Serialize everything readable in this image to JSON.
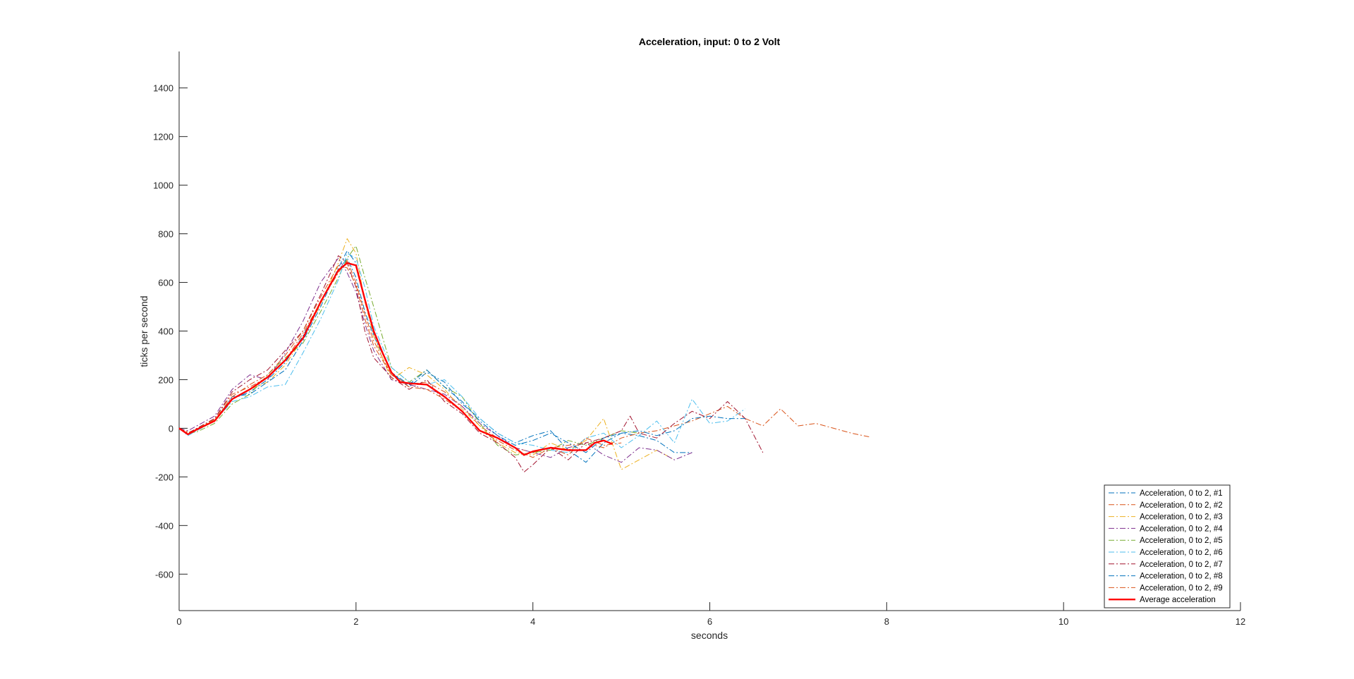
{
  "chart_data": {
    "type": "line",
    "title": "Acceleration, input: 0 to 2 Volt",
    "xlabel": "seconds",
    "ylabel": "ticks per second",
    "xlim": [
      0,
      12
    ],
    "ylim": [
      -750,
      1550
    ],
    "xticks": [
      0,
      2,
      4,
      6,
      8,
      10,
      12
    ],
    "yticks": [
      -600,
      -400,
      -200,
      0,
      200,
      400,
      600,
      800,
      1000,
      1200,
      1400
    ],
    "grid": false,
    "legend_position": "bottom-right",
    "series": [
      {
        "name": "Acceleration, 0 to 2, #1",
        "color": "#0072BD",
        "style": "dashdot",
        "x": [
          0,
          0.1,
          0.2,
          0.4,
          0.6,
          0.8,
          1.0,
          1.2,
          1.4,
          1.6,
          1.8,
          1.9,
          2.0,
          2.1,
          2.2,
          2.4,
          2.6,
          2.8,
          3.0,
          3.2,
          3.4,
          3.6,
          3.8,
          4.0,
          4.2,
          4.4,
          4.6,
          4.8,
          5.0,
          5.2,
          5.4,
          5.6,
          5.8
        ],
        "y": [
          0,
          -25,
          -5,
          30,
          120,
          150,
          200,
          270,
          380,
          520,
          650,
          700,
          620,
          480,
          380,
          230,
          170,
          230,
          190,
          100,
          40,
          -20,
          -60,
          -30,
          -10,
          -90,
          -140,
          -60,
          -20,
          -30,
          -50,
          -100,
          -100
        ]
      },
      {
        "name": "Acceleration, 0 to 2, #2",
        "color": "#D95319",
        "style": "dashdot",
        "x": [
          0,
          0.1,
          0.2,
          0.4,
          0.6,
          0.8,
          1.0,
          1.2,
          1.4,
          1.6,
          1.8,
          1.9,
          2.0,
          2.1,
          2.2,
          2.4,
          2.6,
          2.8,
          3.0,
          3.2,
          3.4,
          3.6,
          3.8,
          4.0,
          4.2,
          4.4,
          4.6,
          4.8,
          5.0,
          5.2,
          5.4,
          5.6,
          5.8,
          6.0,
          6.2,
          6.4,
          6.6,
          6.8,
          7.0,
          7.2,
          7.4,
          7.6,
          7.8
        ],
        "y": [
          0,
          -15,
          -10,
          40,
          140,
          170,
          210,
          280,
          390,
          520,
          640,
          690,
          600,
          470,
          360,
          220,
          180,
          190,
          150,
          90,
          10,
          -40,
          -80,
          -100,
          -80,
          -70,
          -60,
          -80,
          -40,
          -20,
          -10,
          10,
          30,
          60,
          90,
          40,
          10,
          80,
          10,
          20,
          0,
          -20,
          -35
        ]
      },
      {
        "name": "Acceleration, 0 to 2, #3",
        "color": "#EDB120",
        "style": "dashdot",
        "x": [
          0,
          0.1,
          0.2,
          0.4,
          0.6,
          0.8,
          1.0,
          1.2,
          1.4,
          1.6,
          1.8,
          1.9,
          2.0,
          2.1,
          2.2,
          2.4,
          2.6,
          2.8,
          3.0,
          3.2,
          3.4,
          3.6,
          3.8,
          4.0,
          4.2,
          4.4,
          4.6,
          4.8,
          5.0,
          5.2,
          5.4,
          5.6
        ],
        "y": [
          0,
          -20,
          0,
          35,
          120,
          160,
          190,
          260,
          370,
          510,
          680,
          780,
          720,
          520,
          380,
          200,
          250,
          220,
          160,
          80,
          10,
          -60,
          -100,
          -110,
          -60,
          -90,
          -50,
          40,
          -170,
          -130,
          -90,
          -130
        ]
      },
      {
        "name": "Acceleration, 0 to 2, #4",
        "color": "#7E2F8E",
        "style": "dashdot",
        "x": [
          0,
          0.1,
          0.2,
          0.4,
          0.6,
          0.8,
          1.0,
          1.2,
          1.4,
          1.6,
          1.8,
          1.9,
          2.0,
          2.1,
          2.2,
          2.4,
          2.6,
          2.8,
          3.0,
          3.2,
          3.4,
          3.6,
          3.8,
          4.0,
          4.2,
          4.4,
          4.6,
          4.8,
          5.0,
          5.2,
          5.4,
          5.6,
          5.8
        ],
        "y": [
          0,
          -10,
          10,
          50,
          160,
          220,
          200,
          310,
          440,
          600,
          700,
          640,
          560,
          430,
          320,
          200,
          180,
          160,
          140,
          90,
          20,
          -30,
          -80,
          -100,
          -120,
          -80,
          -60,
          -110,
          -140,
          -80,
          -90,
          -130,
          -100
        ]
      },
      {
        "name": "Acceleration, 0 to 2, #5",
        "color": "#77AC30",
        "style": "dashdot",
        "x": [
          0,
          0.1,
          0.2,
          0.4,
          0.6,
          0.8,
          1.0,
          1.2,
          1.4,
          1.6,
          1.8,
          1.9,
          2.0,
          2.1,
          2.2,
          2.4,
          2.6,
          2.8,
          3.0,
          3.2,
          3.4,
          3.6,
          3.8,
          4.0,
          4.2,
          4.4,
          4.6,
          4.8,
          5.0,
          5.2
        ],
        "y": [
          0,
          -20,
          -15,
          20,
          100,
          140,
          220,
          290,
          350,
          480,
          620,
          700,
          750,
          620,
          500,
          250,
          190,
          240,
          170,
          130,
          20,
          -70,
          -110,
          -100,
          -90,
          -50,
          -70,
          -40,
          -10,
          -20
        ]
      },
      {
        "name": "Acceleration, 0 to 2, #6",
        "color": "#4DBEEE",
        "style": "dashdot",
        "x": [
          0,
          0.1,
          0.2,
          0.4,
          0.6,
          0.8,
          1.0,
          1.2,
          1.4,
          1.6,
          1.8,
          1.9,
          2.0,
          2.1,
          2.2,
          2.4,
          2.6,
          2.8,
          3.0,
          3.2,
          3.4,
          3.6,
          3.8,
          4.0,
          4.2,
          4.4,
          4.6,
          4.8,
          5.0,
          5.2,
          5.4,
          5.6,
          5.8,
          6.0,
          6.2,
          6.4
        ],
        "y": [
          0,
          -30,
          -10,
          30,
          110,
          130,
          170,
          180,
          310,
          450,
          610,
          720,
          700,
          580,
          420,
          250,
          190,
          180,
          200,
          130,
          40,
          -20,
          -60,
          -70,
          -90,
          -100,
          -40,
          -20,
          -80,
          -30,
          30,
          -60,
          120,
          20,
          30,
          80
        ]
      },
      {
        "name": "Acceleration, 0 to 2, #7",
        "color": "#A2142F",
        "style": "dashdot",
        "x": [
          0,
          0.1,
          0.2,
          0.4,
          0.6,
          0.8,
          1.0,
          1.2,
          1.4,
          1.6,
          1.8,
          1.9,
          2.0,
          2.1,
          2.2,
          2.4,
          2.6,
          2.8,
          3.0,
          3.2,
          3.4,
          3.6,
          3.8,
          3.9,
          4.0,
          4.2,
          4.4,
          4.6,
          4.8,
          5.0,
          5.1,
          5.2,
          5.4,
          5.6,
          5.8,
          6.0,
          6.2,
          6.4,
          6.6
        ],
        "y": [
          0,
          -20,
          0,
          40,
          150,
          200,
          240,
          320,
          400,
          550,
          710,
          680,
          580,
          400,
          290,
          210,
          160,
          200,
          110,
          60,
          -20,
          -60,
          -120,
          -180,
          -150,
          -80,
          -130,
          -60,
          -40,
          -10,
          50,
          -20,
          -40,
          20,
          70,
          40,
          110,
          40,
          -100
        ]
      },
      {
        "name": "Acceleration, 0 to 2, #8",
        "color": "#0072BD",
        "style": "dashdot",
        "x": [
          0,
          0.1,
          0.2,
          0.4,
          0.6,
          0.8,
          1.0,
          1.2,
          1.4,
          1.6,
          1.8,
          1.9,
          2.0,
          2.1,
          2.2,
          2.4,
          2.6,
          2.8,
          3.0,
          3.2,
          3.4,
          3.6,
          3.8,
          4.0,
          4.2,
          4.4,
          4.6,
          4.8,
          5.0,
          5.2,
          5.4,
          5.6,
          5.8,
          6.0,
          6.2,
          6.4
        ],
        "y": [
          0,
          -25,
          -5,
          30,
          130,
          140,
          190,
          240,
          360,
          500,
          660,
          730,
          680,
          530,
          390,
          230,
          180,
          240,
          170,
          110,
          30,
          -30,
          -70,
          -50,
          -20,
          -60,
          -100,
          -40,
          -20,
          -10,
          -30,
          -10,
          40,
          50,
          40,
          40
        ]
      },
      {
        "name": "Acceleration, 0 to 2, #9",
        "color": "#D95319",
        "style": "dashdot",
        "x": [
          0,
          0.1,
          0.2,
          0.4,
          0.6,
          0.8,
          1.0,
          1.2,
          1.4,
          1.6,
          1.8,
          1.9,
          2.0,
          2.1,
          2.2,
          2.4,
          2.6,
          2.8,
          3.0,
          3.2,
          3.4,
          3.6,
          3.8,
          4.0,
          4.2,
          4.4,
          4.6,
          4.8,
          5.0
        ],
        "y": [
          0,
          -20,
          -5,
          35,
          130,
          180,
          220,
          300,
          400,
          540,
          670,
          660,
          590,
          450,
          340,
          220,
          170,
          160,
          120,
          70,
          -10,
          -50,
          -90,
          -120,
          -80,
          -110,
          -40,
          -70,
          -60
        ]
      },
      {
        "name": "Average acceleration",
        "color": "#FF0000",
        "style": "solid",
        "x": [
          0,
          0.1,
          0.2,
          0.4,
          0.6,
          0.8,
          1.0,
          1.2,
          1.4,
          1.6,
          1.8,
          1.9,
          2.0,
          2.1,
          2.2,
          2.3,
          2.4,
          2.5,
          2.6,
          2.8,
          3.0,
          3.2,
          3.4,
          3.6,
          3.8,
          3.9,
          4.0,
          4.2,
          4.4,
          4.6,
          4.7,
          4.8,
          4.9
        ],
        "y": [
          0,
          -25,
          -5,
          30,
          120,
          160,
          210,
          280,
          370,
          520,
          650,
          680,
          670,
          530,
          400,
          310,
          230,
          190,
          185,
          180,
          130,
          70,
          -10,
          -40,
          -80,
          -110,
          -95,
          -80,
          -90,
          -90,
          -60,
          -50,
          -65
        ]
      }
    ]
  }
}
